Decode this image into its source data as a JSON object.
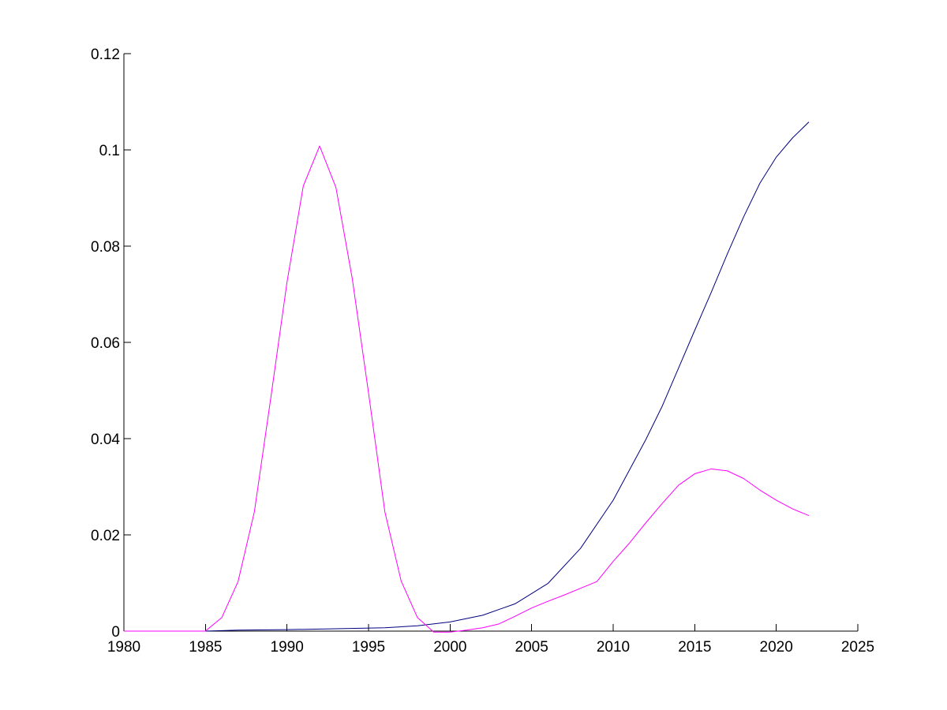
{
  "chart_data": {
    "type": "line",
    "title": "",
    "xlabel": "",
    "ylabel": "",
    "xlim": [
      1980,
      2025
    ],
    "ylim": [
      0,
      0.12
    ],
    "grid": false,
    "xticks": [
      1980,
      1985,
      1990,
      1995,
      2000,
      2005,
      2010,
      2015,
      2020,
      2025
    ],
    "xtick_labels": [
      "1980",
      "1985",
      "1990",
      "1995",
      "2000",
      "2005",
      "2010",
      "2015",
      "2020",
      "2025"
    ],
    "yticks": [
      0,
      0.02,
      0.04,
      0.06,
      0.08,
      0.1,
      0.12
    ],
    "ytick_labels": [
      "0",
      "0.02",
      "0.04",
      "0.06",
      "0.08",
      "0.1",
      "0.12"
    ],
    "series": [
      {
        "color": "#000080",
        "x": [
          1980,
          1985,
          1987,
          1990,
          1993,
          1996,
          1998,
          2000,
          2002,
          2004,
          2006,
          2008,
          2010,
          2012,
          2013,
          2014,
          2015,
          2016,
          2017,
          2018,
          2019,
          2020,
          2021,
          2022
        ],
        "y": [
          0,
          0,
          0.0002,
          0.0003,
          0.0005,
          0.0007,
          0.0011,
          0.0019,
          0.0033,
          0.0057,
          0.0099,
          0.0172,
          0.0272,
          0.0398,
          0.0467,
          0.0546,
          0.0625,
          0.0703,
          0.0784,
          0.0861,
          0.0931,
          0.0985,
          0.1025,
          0.1058
        ]
      },
      {
        "color": "#FF00FF",
        "x": [
          1980,
          1985,
          1986,
          1987,
          1988,
          1989,
          1990,
          1991,
          1992,
          1993,
          1994,
          1995,
          1996,
          1997,
          1998,
          1999,
          2000,
          2001,
          2002,
          2003,
          2004,
          2005,
          2006,
          2007,
          2008,
          2009,
          2010,
          2011,
          2012,
          2013,
          2014,
          2015,
          2016,
          2017,
          2018,
          2019,
          2020,
          2021,
          2022
        ],
        "y": [
          0,
          0,
          0.0028,
          0.0103,
          0.0248,
          0.0483,
          0.0725,
          0.0925,
          0.1008,
          0.0922,
          0.0733,
          0.0495,
          0.0248,
          0.0104,
          0.0028,
          -0.0002,
          -0.0002,
          0.0002,
          0.0007,
          0.0015,
          0.0031,
          0.0048,
          0.0062,
          0.0075,
          0.0089,
          0.0103,
          0.0145,
          0.0183,
          0.0225,
          0.0265,
          0.0303,
          0.0327,
          0.0337,
          0.0333,
          0.0317,
          0.0293,
          0.0272,
          0.0254,
          0.024
        ]
      }
    ]
  }
}
